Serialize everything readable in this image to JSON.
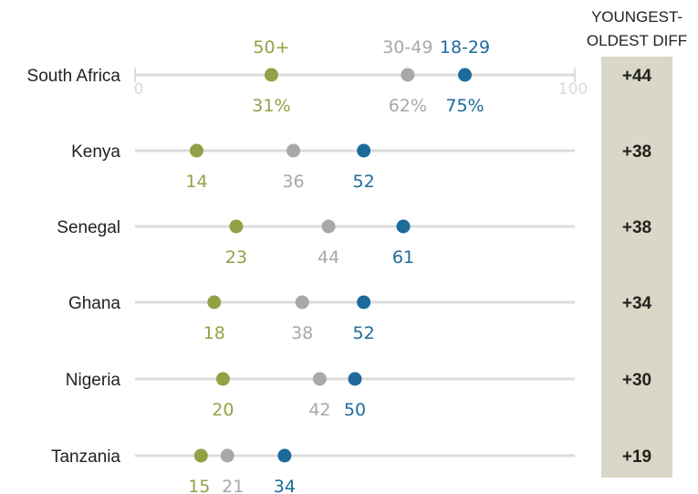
{
  "chart_data": {
    "type": "dot",
    "xlim": [
      0,
      100
    ],
    "axis_ticks": [
      "0",
      "100"
    ],
    "value_suffix_first_row": "%",
    "diff_header": [
      "YOUNGEST-",
      "OLDEST DIFF"
    ],
    "series": [
      {
        "name": "50+",
        "color": "#94a046"
      },
      {
        "name": "30-49",
        "color": "#a8a8a8"
      },
      {
        "name": "18-29",
        "color": "#1d6b9a"
      }
    ],
    "categories": [
      "South Africa",
      "Kenya",
      "Senegal",
      "Ghana",
      "Nigeria",
      "Tanzania"
    ],
    "rows": [
      {
        "country": "South Africa",
        "values": [
          31,
          62,
          75
        ],
        "labels": [
          "31%",
          "62%",
          "75%"
        ],
        "diff": "+44"
      },
      {
        "country": "Kenya",
        "values": [
          14,
          36,
          52
        ],
        "labels": [
          "14",
          "36",
          "52"
        ],
        "diff": "+38"
      },
      {
        "country": "Senegal",
        "values": [
          23,
          44,
          61
        ],
        "labels": [
          "23",
          "44",
          "61"
        ],
        "diff": "+38"
      },
      {
        "country": "Ghana",
        "values": [
          18,
          38,
          52
        ],
        "labels": [
          "18",
          "38",
          "52"
        ],
        "diff": "+34"
      },
      {
        "country": "Nigeria",
        "values": [
          20,
          42,
          50
        ],
        "labels": [
          "20",
          "42",
          "50"
        ],
        "diff": "+30"
      },
      {
        "country": "Tanzania",
        "values": [
          15,
          21,
          34
        ],
        "labels": [
          "15",
          "21",
          "34"
        ],
        "diff": "+19"
      }
    ],
    "colors": {
      "line": "#dcdcdc",
      "diff_band": "#d9d7c5"
    }
  }
}
